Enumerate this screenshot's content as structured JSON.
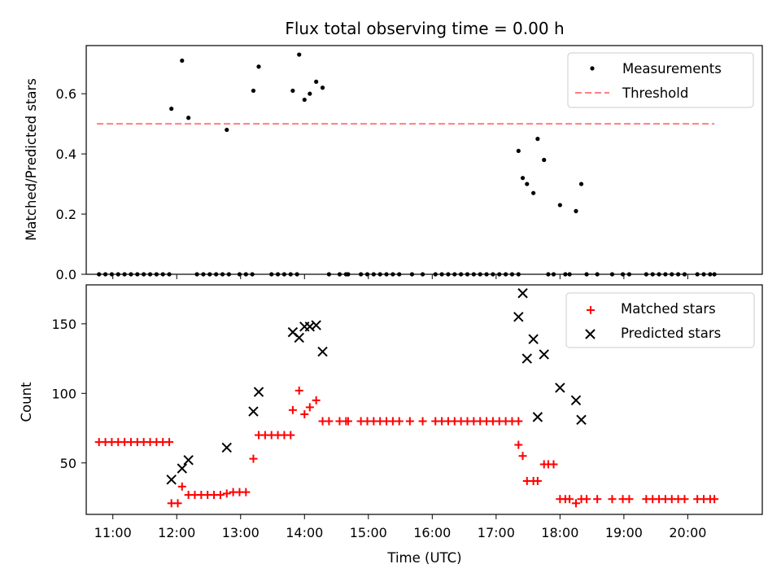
{
  "chart_data": [
    {
      "type": "scatter",
      "title": "Flux total observing time = 0.00 h",
      "xlabel": "",
      "ylabel": "Matched/Predicted stars",
      "xlim": [
        "10:35",
        "21:10"
      ],
      "ylim": [
        0,
        0.76
      ],
      "yticks": [
        0.0,
        0.2,
        0.4,
        0.6
      ],
      "ytick_labels": [
        "0.0",
        "0.2",
        "0.4",
        "0.6"
      ],
      "legend": {
        "position": "top-right",
        "entries": [
          "Measurements",
          "Threshold"
        ]
      },
      "colors": {
        "measurements": "#000000",
        "threshold": "#ff7f7f"
      },
      "series": [
        {
          "name": "Measurements",
          "marker": "dot",
          "points": [
            [
              "10:47",
              0
            ],
            [
              "10:53",
              0
            ],
            [
              "10:59",
              0
            ],
            [
              "11:05",
              0
            ],
            [
              "11:11",
              0
            ],
            [
              "11:17",
              0
            ],
            [
              "11:23",
              0
            ],
            [
              "11:29",
              0
            ],
            [
              "11:35",
              0
            ],
            [
              "11:41",
              0
            ],
            [
              "11:47",
              0
            ],
            [
              "11:53",
              0
            ],
            [
              "11:55",
              0.55
            ],
            [
              "12:05",
              0.71
            ],
            [
              "12:11",
              0.52
            ],
            [
              "12:19",
              0
            ],
            [
              "12:25",
              0
            ],
            [
              "12:31",
              0
            ],
            [
              "12:37",
              0
            ],
            [
              "12:43",
              0
            ],
            [
              "12:49",
              0
            ],
            [
              "12:47",
              0.48
            ],
            [
              "12:59",
              0
            ],
            [
              "13:05",
              0
            ],
            [
              "13:11",
              0
            ],
            [
              "13:12",
              0.61
            ],
            [
              "13:17",
              0.69
            ],
            [
              "13:29",
              0
            ],
            [
              "13:35",
              0
            ],
            [
              "13:41",
              0
            ],
            [
              "13:47",
              0
            ],
            [
              "13:53",
              0
            ],
            [
              "13:49",
              0.61
            ],
            [
              "13:55",
              0.73
            ],
            [
              "14:00",
              0.58
            ],
            [
              "14:05",
              0.6
            ],
            [
              "14:11",
              0.64
            ],
            [
              "14:17",
              0.62
            ],
            [
              "14:23",
              0
            ],
            [
              "14:33",
              0
            ],
            [
              "14:39",
              0
            ],
            [
              "14:41",
              0
            ],
            [
              "14:53",
              0
            ],
            [
              "14:59",
              0
            ],
            [
              "15:05",
              0
            ],
            [
              "15:11",
              0
            ],
            [
              "15:17",
              0
            ],
            [
              "15:23",
              0
            ],
            [
              "15:29",
              0
            ],
            [
              "15:41",
              0
            ],
            [
              "15:51",
              0
            ],
            [
              "16:03",
              0
            ],
            [
              "16:09",
              0
            ],
            [
              "16:15",
              0
            ],
            [
              "16:21",
              0
            ],
            [
              "16:27",
              0
            ],
            [
              "16:33",
              0
            ],
            [
              "16:39",
              0
            ],
            [
              "16:45",
              0
            ],
            [
              "16:51",
              0
            ],
            [
              "16:57",
              0
            ],
            [
              "17:03",
              0
            ],
            [
              "17:09",
              0
            ],
            [
              "17:15",
              0
            ],
            [
              "17:21",
              0
            ],
            [
              "17:21",
              0.41
            ],
            [
              "17:25",
              0.32
            ],
            [
              "17:29",
              0.3
            ],
            [
              "17:35",
              0.27
            ],
            [
              "17:39",
              0.45
            ],
            [
              "17:45",
              0.38
            ],
            [
              "17:49",
              0
            ],
            [
              "17:54",
              0
            ],
            [
              "18:00",
              0.23
            ],
            [
              "18:05",
              0
            ],
            [
              "18:09",
              0
            ],
            [
              "18:15",
              0.21
            ],
            [
              "18:20",
              0.3
            ],
            [
              "18:25",
              0
            ],
            [
              "18:35",
              0
            ],
            [
              "18:49",
              0
            ],
            [
              "18:59",
              0
            ],
            [
              "19:05",
              0
            ],
            [
              "19:21",
              0
            ],
            [
              "19:27",
              0
            ],
            [
              "19:33",
              0
            ],
            [
              "19:39",
              0
            ],
            [
              "19:45",
              0
            ],
            [
              "19:51",
              0
            ],
            [
              "19:57",
              0
            ],
            [
              "20:09",
              0
            ],
            [
              "20:15",
              0
            ],
            [
              "20:21",
              0
            ],
            [
              "20:25",
              0
            ]
          ]
        },
        {
          "name": "Threshold",
          "style": "dashed-line",
          "points": [
            [
              "10:45",
              0.5
            ],
            [
              "20:25",
              0.5
            ]
          ]
        }
      ]
    },
    {
      "type": "scatter",
      "title": "",
      "xlabel": "Time (UTC)",
      "ylabel": "Count",
      "xlim": [
        "10:35",
        "21:10"
      ],
      "ylim": [
        13,
        178
      ],
      "yticks": [
        50,
        100,
        150
      ],
      "ytick_labels": [
        "50",
        "100",
        "150"
      ],
      "xticks": [
        "11:00",
        "12:00",
        "13:00",
        "14:00",
        "15:00",
        "16:00",
        "17:00",
        "18:00",
        "19:00",
        "20:00"
      ],
      "xtick_labels": [
        "11:00",
        "12:00",
        "13:00",
        "14:00",
        "15:00",
        "16:00",
        "17:00",
        "18:00",
        "19:00",
        "20:00"
      ],
      "legend": {
        "position": "top-right",
        "entries": [
          "Matched stars",
          "Predicted stars"
        ]
      },
      "colors": {
        "matched": "#ff0000",
        "predicted": "#000000"
      },
      "series": [
        {
          "name": "Matched stars",
          "marker": "plus",
          "points": [
            [
              "10:47",
              65
            ],
            [
              "10:53",
              65
            ],
            [
              "10:59",
              65
            ],
            [
              "11:05",
              65
            ],
            [
              "11:11",
              65
            ],
            [
              "11:17",
              65
            ],
            [
              "11:23",
              65
            ],
            [
              "11:29",
              65
            ],
            [
              "11:35",
              65
            ],
            [
              "11:41",
              65
            ],
            [
              "11:47",
              65
            ],
            [
              "11:53",
              65
            ],
            [
              "11:55",
              21
            ],
            [
              "12:01",
              21
            ],
            [
              "12:05",
              33
            ],
            [
              "12:11",
              27
            ],
            [
              "12:17",
              27
            ],
            [
              "12:23",
              27
            ],
            [
              "12:29",
              27
            ],
            [
              "12:35",
              27
            ],
            [
              "12:41",
              27
            ],
            [
              "12:47",
              28
            ],
            [
              "12:53",
              29
            ],
            [
              "12:59",
              29
            ],
            [
              "13:05",
              29
            ],
            [
              "13:12",
              53
            ],
            [
              "13:17",
              70
            ],
            [
              "13:23",
              70
            ],
            [
              "13:29",
              70
            ],
            [
              "13:35",
              70
            ],
            [
              "13:41",
              70
            ],
            [
              "13:47",
              70
            ],
            [
              "13:49",
              88
            ],
            [
              "13:55",
              102
            ],
            [
              "14:00",
              85
            ],
            [
              "14:05",
              90
            ],
            [
              "14:11",
              95
            ],
            [
              "14:17",
              80
            ],
            [
              "14:23",
              80
            ],
            [
              "14:33",
              80
            ],
            [
              "14:39",
              80
            ],
            [
              "14:41",
              80
            ],
            [
              "14:53",
              80
            ],
            [
              "14:59",
              80
            ],
            [
              "15:05",
              80
            ],
            [
              "15:11",
              80
            ],
            [
              "15:17",
              80
            ],
            [
              "15:23",
              80
            ],
            [
              "15:29",
              80
            ],
            [
              "15:39",
              80
            ],
            [
              "15:51",
              80
            ],
            [
              "16:03",
              80
            ],
            [
              "16:09",
              80
            ],
            [
              "16:15",
              80
            ],
            [
              "16:21",
              80
            ],
            [
              "16:27",
              80
            ],
            [
              "16:33",
              80
            ],
            [
              "16:39",
              80
            ],
            [
              "16:45",
              80
            ],
            [
              "16:51",
              80
            ],
            [
              "16:57",
              80
            ],
            [
              "17:03",
              80
            ],
            [
              "17:09",
              80
            ],
            [
              "17:15",
              80
            ],
            [
              "17:21",
              80
            ],
            [
              "17:21",
              63
            ],
            [
              "17:25",
              55
            ],
            [
              "17:29",
              37
            ],
            [
              "17:35",
              37
            ],
            [
              "17:39",
              37
            ],
            [
              "17:45",
              49
            ],
            [
              "17:49",
              49
            ],
            [
              "17:54",
              49
            ],
            [
              "18:00",
              24
            ],
            [
              "18:05",
              24
            ],
            [
              "18:09",
              24
            ],
            [
              "18:15",
              21
            ],
            [
              "18:20",
              24
            ],
            [
              "18:25",
              24
            ],
            [
              "18:35",
              24
            ],
            [
              "18:49",
              24
            ],
            [
              "18:59",
              24
            ],
            [
              "19:05",
              24
            ],
            [
              "19:21",
              24
            ],
            [
              "19:27",
              24
            ],
            [
              "19:33",
              24
            ],
            [
              "19:39",
              24
            ],
            [
              "19:45",
              24
            ],
            [
              "19:51",
              24
            ],
            [
              "19:57",
              24
            ],
            [
              "20:09",
              24
            ],
            [
              "20:15",
              24
            ],
            [
              "20:21",
              24
            ],
            [
              "20:25",
              24
            ]
          ]
        },
        {
          "name": "Predicted stars",
          "marker": "x",
          "points": [
            [
              "11:55",
              38
            ],
            [
              "12:05",
              46
            ],
            [
              "12:11",
              52
            ],
            [
              "12:47",
              61
            ],
            [
              "13:12",
              87
            ],
            [
              "13:17",
              101
            ],
            [
              "13:49",
              144
            ],
            [
              "13:55",
              140
            ],
            [
              "14:00",
              148
            ],
            [
              "14:05",
              148
            ],
            [
              "14:11",
              149
            ],
            [
              "14:17",
              130
            ],
            [
              "17:21",
              155
            ],
            [
              "17:25",
              172
            ],
            [
              "17:29",
              125
            ],
            [
              "17:35",
              139
            ],
            [
              "17:39",
              83
            ],
            [
              "17:45",
              128
            ],
            [
              "18:00",
              104
            ],
            [
              "18:15",
              95
            ],
            [
              "18:20",
              81
            ]
          ]
        }
      ]
    }
  ]
}
